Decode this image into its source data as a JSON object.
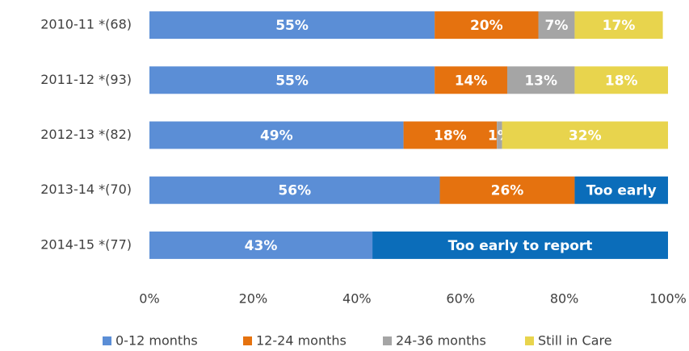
{
  "chart_data": {
    "type": "stacked-horizontal-bar",
    "categories": [
      "2010-11  *(68)",
      "2011-12  *(93)",
      "2012-13  *(82)",
      "2013-14  *(70)",
      "2014-15  *(77)"
    ],
    "series": [
      {
        "name": "0-12 months",
        "color": "#5b8ed6",
        "values": [
          55,
          55,
          49,
          56,
          43
        ],
        "value_labels": [
          "55%",
          "55%",
          "49%",
          "56%",
          "43%"
        ]
      },
      {
        "name": "12-24 months",
        "color": "#e5720f",
        "values": [
          20,
          14,
          18,
          26,
          null
        ],
        "value_labels": [
          "20%",
          "14%",
          "18%",
          "26%",
          null
        ]
      },
      {
        "name": "24-36 months",
        "color": "#a5a5a5",
        "values": [
          7,
          13,
          1,
          null,
          null
        ],
        "value_labels": [
          "7%",
          "13%",
          "1%",
          null,
          null
        ]
      },
      {
        "name": "Still in Care",
        "color": "#e8d44d",
        "values": [
          17,
          18,
          32,
          null,
          null
        ],
        "value_labels": [
          "17%",
          "18%",
          "32%",
          null,
          null
        ]
      },
      {
        "color": "#0b6dba",
        "values": [
          null,
          null,
          null,
          18,
          57
        ],
        "value_labels": [
          null,
          null,
          null,
          "Too early",
          "Too early to report"
        ]
      }
    ],
    "xlim": [
      0,
      100
    ],
    "xticks": [
      {
        "value": 0,
        "label": "0%"
      },
      {
        "value": 20,
        "label": "20%"
      },
      {
        "value": 40,
        "label": "40%"
      },
      {
        "value": 60,
        "label": "60%"
      },
      {
        "value": 80,
        "label": "80%"
      },
      {
        "value": 100,
        "label": "100%"
      }
    ],
    "legend": "bottom"
  }
}
